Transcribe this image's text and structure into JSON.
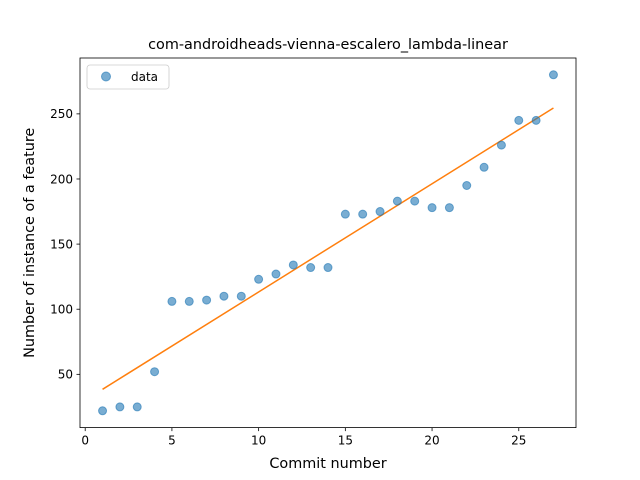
{
  "chart_data": {
    "type": "scatter",
    "title": "com-androidheads-vienna-escalero_lambda-linear",
    "xlabel": "Commit number",
    "ylabel": "Number of instance of a feature",
    "xlim": [
      -0.3,
      28.3
    ],
    "ylim": [
      9.1,
      292.9
    ],
    "xticks": [
      0,
      5,
      10,
      15,
      20,
      25
    ],
    "yticks": [
      50,
      100,
      150,
      200,
      250
    ],
    "grid": false,
    "legend": {
      "position": "top-left",
      "entries": [
        "data"
      ]
    },
    "series": [
      {
        "name": "data",
        "kind": "scatter",
        "color": "#1f77b4",
        "x": [
          1,
          2,
          3,
          4,
          5,
          6,
          7,
          8,
          9,
          10,
          11,
          12,
          13,
          14,
          15,
          16,
          17,
          18,
          19,
          20,
          21,
          22,
          23,
          24,
          25,
          26,
          27
        ],
        "y": [
          22,
          25,
          25,
          52,
          106,
          106,
          107,
          110,
          110,
          123,
          127,
          134,
          132,
          132,
          173,
          173,
          175,
          183,
          183,
          178,
          178,
          195,
          209,
          226,
          245,
          245,
          280
        ]
      },
      {
        "kind": "line",
        "color": "#ff7f0e",
        "x": [
          1,
          27
        ],
        "y": [
          38.5,
          254.5
        ]
      }
    ]
  }
}
